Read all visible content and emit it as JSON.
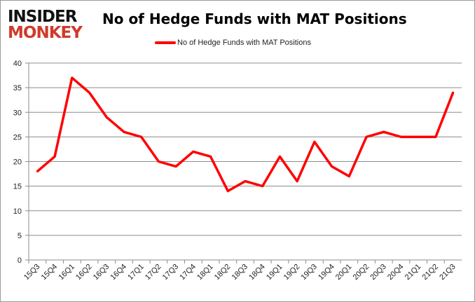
{
  "logo": {
    "line1": "INSIDER",
    "line2": "MONKEY"
  },
  "chart_data": {
    "type": "line",
    "title": "No of Hedge Funds with MAT Positions",
    "legend_position": "top",
    "grid": true,
    "ylim": [
      0,
      40
    ],
    "yticks": [
      0,
      5,
      10,
      15,
      20,
      25,
      30,
      35,
      40
    ],
    "categories": [
      "15Q3",
      "15Q4",
      "16Q1",
      "16Q2",
      "16Q3",
      "16Q4",
      "17Q1",
      "17Q2",
      "17Q3",
      "17Q4",
      "18Q1",
      "18Q2",
      "18Q3",
      "18Q4",
      "19Q1",
      "19Q2",
      "19Q3",
      "19Q4",
      "20Q1",
      "20Q2",
      "20Q3",
      "20Q4",
      "21Q1",
      "21Q2",
      "21Q3"
    ],
    "series": [
      {
        "name": "No of Hedge Funds with MAT Positions",
        "color": "#ff0000",
        "values": [
          18,
          21,
          37,
          34,
          29,
          26,
          25,
          20,
          19,
          22,
          21,
          14,
          16,
          15,
          21,
          16,
          24,
          19,
          17,
          25,
          26,
          25,
          25,
          25,
          34
        ]
      }
    ]
  }
}
